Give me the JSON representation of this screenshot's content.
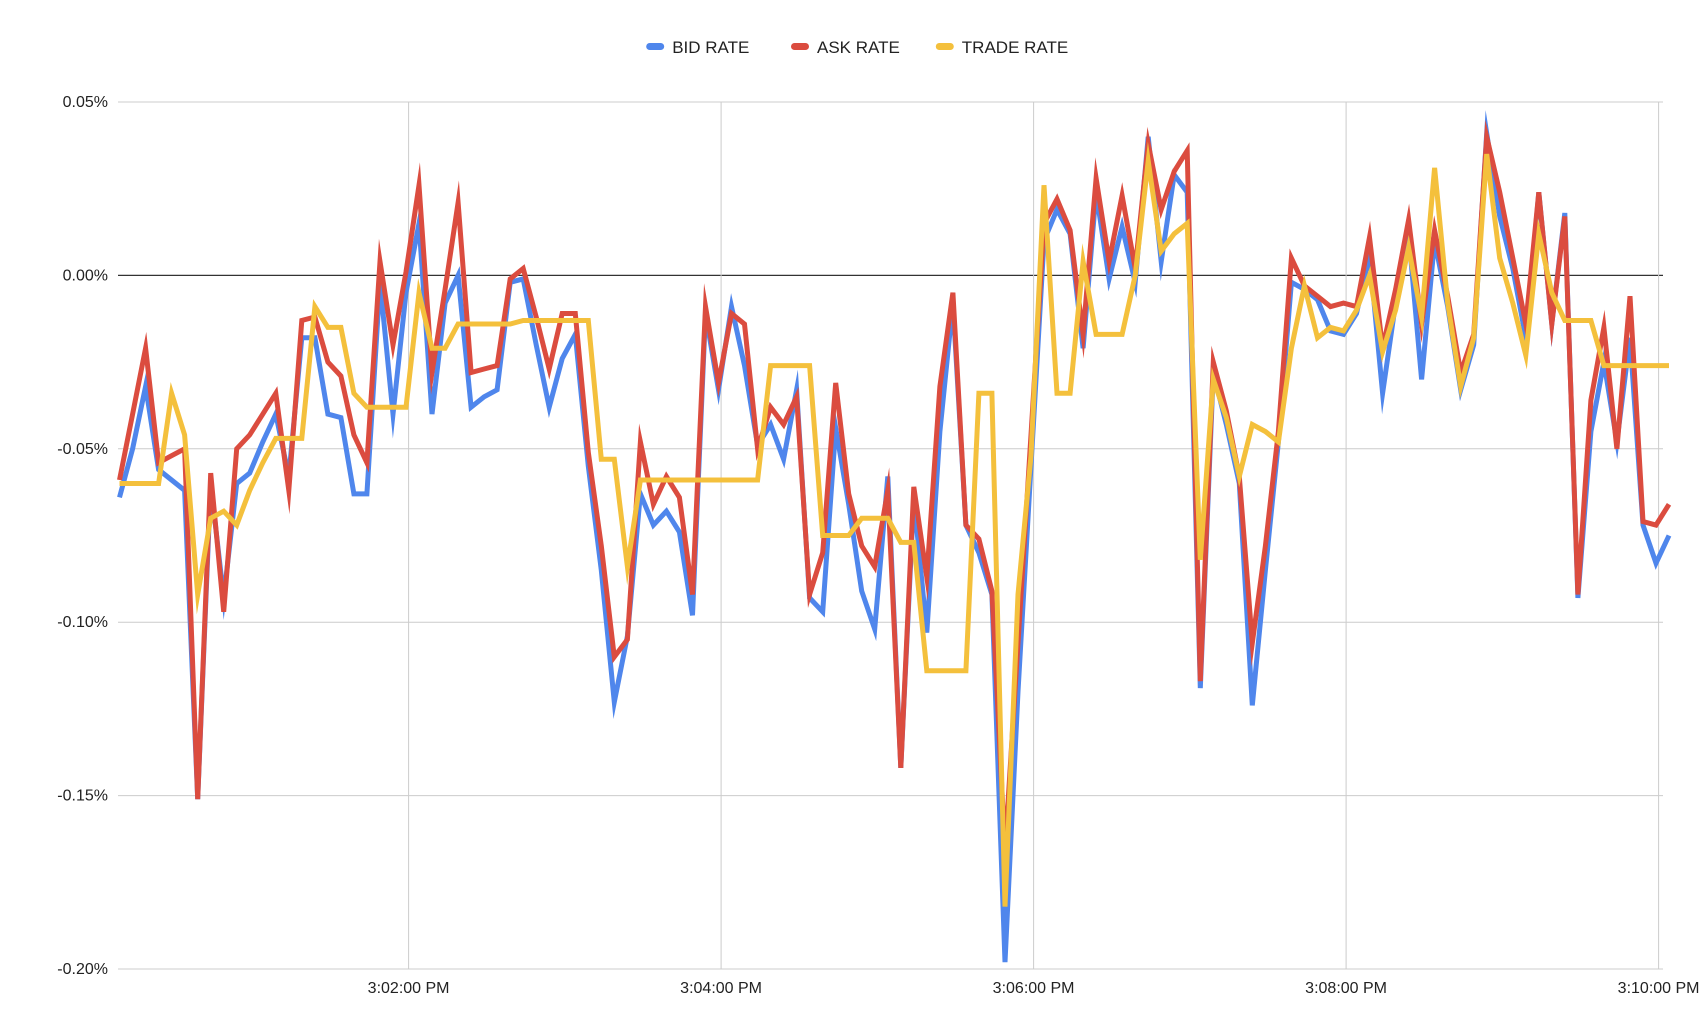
{
  "chart_data": {
    "type": "line",
    "title": "",
    "xlabel": "",
    "ylabel": "",
    "legend_position": "top",
    "grid": true,
    "ylim": [
      -0.2,
      0.05
    ],
    "y_unit": "%",
    "y_ticks": [
      0.05,
      0.0,
      -0.05,
      -0.1,
      -0.15,
      -0.2
    ],
    "y_tick_labels": [
      "0.05%",
      "0.00%",
      "-0.05%",
      "-0.10%",
      "-0.15%",
      "-0.20%"
    ],
    "x_ticks": [
      "3:02:00",
      "3:04:00",
      "3:06:00",
      "3:08:00",
      "3:10:00"
    ],
    "x_tick_labels": [
      "3:02:00 PM",
      "3:04:00 PM",
      "3:06:00 PM",
      "3:08:00 PM",
      "3:10:00 PM"
    ],
    "xlim": [
      "3:00:09",
      "3:10:04"
    ],
    "x": [
      "3:00:09",
      "3:00:14",
      "3:00:19",
      "3:00:24",
      "3:00:29",
      "3:00:34",
      "3:00:39",
      "3:00:44",
      "3:00:49",
      "3:00:54",
      "3:00:59",
      "3:01:04",
      "3:01:09",
      "3:01:14",
      "3:01:19",
      "3:01:24",
      "3:01:29",
      "3:01:34",
      "3:01:39",
      "3:01:44",
      "3:01:49",
      "3:01:54",
      "3:01:59",
      "3:02:04",
      "3:02:09",
      "3:02:14",
      "3:02:19",
      "3:02:24",
      "3:02:29",
      "3:02:34",
      "3:02:39",
      "3:02:44",
      "3:02:49",
      "3:02:54",
      "3:02:59",
      "3:03:04",
      "3:03:09",
      "3:03:14",
      "3:03:19",
      "3:03:24",
      "3:03:29",
      "3:03:34",
      "3:03:39",
      "3:03:44",
      "3:03:49",
      "3:03:54",
      "3:03:59",
      "3:04:04",
      "3:04:09",
      "3:04:14",
      "3:04:19",
      "3:04:24",
      "3:04:29",
      "3:04:34",
      "3:04:39",
      "3:04:44",
      "3:04:49",
      "3:04:54",
      "3:04:59",
      "3:05:04",
      "3:05:09",
      "3:05:14",
      "3:05:19",
      "3:05:24",
      "3:05:29",
      "3:05:34",
      "3:05:39",
      "3:05:44",
      "3:05:49",
      "3:05:54",
      "3:05:59",
      "3:06:04",
      "3:06:09",
      "3:06:14",
      "3:06:19",
      "3:06:24",
      "3:06:29",
      "3:06:34",
      "3:06:39",
      "3:06:44",
      "3:06:49",
      "3:06:54",
      "3:06:59",
      "3:07:04",
      "3:07:09",
      "3:07:14",
      "3:07:19",
      "3:07:24",
      "3:07:29",
      "3:07:34",
      "3:07:39",
      "3:07:44",
      "3:07:49",
      "3:07:54",
      "3:07:59",
      "3:08:04",
      "3:08:09",
      "3:08:14",
      "3:08:19",
      "3:08:24",
      "3:08:29",
      "3:08:34",
      "3:08:39",
      "3:08:44",
      "3:08:49",
      "3:08:54",
      "3:08:59",
      "3:09:04",
      "3:09:09",
      "3:09:14",
      "3:09:19",
      "3:09:24",
      "3:09:29",
      "3:09:34",
      "3:09:39",
      "3:09:44",
      "3:09:49",
      "3:09:54",
      "3:09:59",
      "3:10:04"
    ],
    "series": [
      {
        "name": "BID RATE",
        "color": "#4f86ec",
        "values": [
          -0.064,
          -0.05,
          -0.032,
          -0.056,
          -0.059,
          -0.062,
          -0.151,
          -0.06,
          -0.093,
          -0.06,
          -0.057,
          -0.048,
          -0.04,
          -0.058,
          -0.018,
          -0.018,
          -0.04,
          -0.041,
          -0.063,
          -0.063,
          -0.002,
          -0.04,
          -0.005,
          0.015,
          -0.04,
          -0.008,
          0.0,
          -0.038,
          -0.035,
          -0.033,
          -0.002,
          -0.001,
          -0.02,
          -0.038,
          -0.024,
          -0.017,
          -0.055,
          -0.085,
          -0.123,
          -0.104,
          -0.063,
          -0.072,
          -0.068,
          -0.074,
          -0.098,
          -0.011,
          -0.033,
          -0.009,
          -0.026,
          -0.049,
          -0.043,
          -0.053,
          -0.033,
          -0.093,
          -0.097,
          -0.044,
          -0.066,
          -0.091,
          -0.102,
          -0.058,
          -0.142,
          -0.064,
          -0.103,
          -0.045,
          -0.008,
          -0.072,
          -0.08,
          -0.092,
          -0.198,
          -0.12,
          -0.055,
          0.01,
          0.019,
          0.012,
          -0.021,
          0.024,
          -0.001,
          0.014,
          -0.002,
          0.04,
          0.004,
          0.029,
          0.024,
          -0.119,
          -0.028,
          -0.043,
          -0.06,
          -0.124,
          -0.085,
          -0.048,
          -0.002,
          -0.004,
          -0.007,
          -0.016,
          -0.017,
          -0.011,
          0.006,
          -0.034,
          -0.008,
          0.012,
          -0.03,
          0.01,
          -0.009,
          -0.033,
          -0.02,
          0.041,
          0.017,
          0.002,
          -0.018,
          0.024,
          -0.014,
          0.018,
          -0.093,
          -0.045,
          -0.025,
          -0.048,
          -0.018,
          -0.072,
          -0.083,
          -0.075
        ]
      },
      {
        "name": "ASK RATE",
        "color": "#db4c3f",
        "values": [
          -0.059,
          -0.04,
          -0.021,
          -0.054,
          -0.052,
          -0.05,
          -0.151,
          -0.057,
          -0.097,
          -0.05,
          -0.046,
          -0.04,
          -0.034,
          -0.062,
          -0.013,
          -0.012,
          -0.025,
          -0.029,
          -0.046,
          -0.054,
          0.004,
          -0.02,
          0.001,
          0.026,
          -0.028,
          -0.004,
          0.021,
          -0.028,
          -0.027,
          -0.026,
          -0.001,
          0.002,
          -0.012,
          -0.027,
          -0.011,
          -0.011,
          -0.051,
          -0.078,
          -0.11,
          -0.105,
          -0.048,
          -0.066,
          -0.058,
          -0.064,
          -0.092,
          -0.009,
          -0.031,
          -0.011,
          -0.014,
          -0.05,
          -0.038,
          -0.043,
          -0.035,
          -0.092,
          -0.08,
          -0.031,
          -0.063,
          -0.078,
          -0.084,
          -0.062,
          -0.142,
          -0.061,
          -0.087,
          -0.032,
          -0.005,
          -0.072,
          -0.076,
          -0.091,
          -0.166,
          -0.106,
          -0.046,
          0.015,
          0.022,
          0.013,
          -0.017,
          0.028,
          0.004,
          0.023,
          0.002,
          0.038,
          0.019,
          0.03,
          0.036,
          -0.117,
          -0.025,
          -0.039,
          -0.058,
          -0.106,
          -0.078,
          -0.045,
          0.005,
          -0.003,
          -0.006,
          -0.009,
          -0.008,
          -0.009,
          0.011,
          -0.021,
          -0.004,
          0.016,
          -0.014,
          0.013,
          -0.006,
          -0.028,
          -0.017,
          0.04,
          0.024,
          0.005,
          -0.014,
          0.024,
          -0.014,
          0.017,
          -0.092,
          -0.036,
          -0.015,
          -0.05,
          -0.006,
          -0.071,
          -0.072,
          -0.066
        ]
      },
      {
        "name": "TRADE RATE",
        "color": "#f4c03c",
        "values": [
          -0.06,
          -0.06,
          -0.06,
          -0.06,
          -0.034,
          -0.046,
          -0.092,
          -0.07,
          -0.068,
          -0.072,
          -0.062,
          -0.054,
          -0.047,
          -0.047,
          -0.047,
          -0.009,
          -0.015,
          -0.015,
          -0.034,
          -0.038,
          -0.038,
          -0.038,
          -0.038,
          -0.005,
          -0.021,
          -0.021,
          -0.014,
          -0.014,
          -0.014,
          -0.014,
          -0.014,
          -0.013,
          -0.013,
          -0.013,
          -0.013,
          -0.013,
          -0.013,
          -0.053,
          -0.053,
          -0.084,
          -0.059,
          -0.059,
          -0.059,
          -0.059,
          -0.059,
          -0.059,
          -0.059,
          -0.059,
          -0.059,
          -0.059,
          -0.026,
          -0.026,
          -0.026,
          -0.026,
          -0.075,
          -0.075,
          -0.075,
          -0.07,
          -0.07,
          -0.07,
          -0.077,
          -0.077,
          -0.114,
          -0.114,
          -0.114,
          -0.114,
          -0.034,
          -0.034,
          -0.182,
          -0.092,
          -0.052,
          0.026,
          -0.034,
          -0.034,
          0.004,
          -0.017,
          -0.017,
          -0.017,
          0.0,
          0.033,
          0.007,
          0.012,
          0.015,
          -0.082,
          -0.03,
          -0.041,
          -0.058,
          -0.043,
          -0.045,
          -0.048,
          -0.021,
          -0.003,
          -0.018,
          -0.015,
          -0.016,
          -0.01,
          0.0,
          -0.022,
          -0.01,
          0.008,
          -0.012,
          0.031,
          -0.008,
          -0.032,
          -0.018,
          0.035,
          0.005,
          -0.008,
          -0.023,
          0.012,
          -0.005,
          -0.013,
          -0.013,
          -0.013,
          -0.026,
          -0.026,
          -0.026,
          -0.026,
          -0.026,
          -0.026
        ]
      }
    ]
  }
}
